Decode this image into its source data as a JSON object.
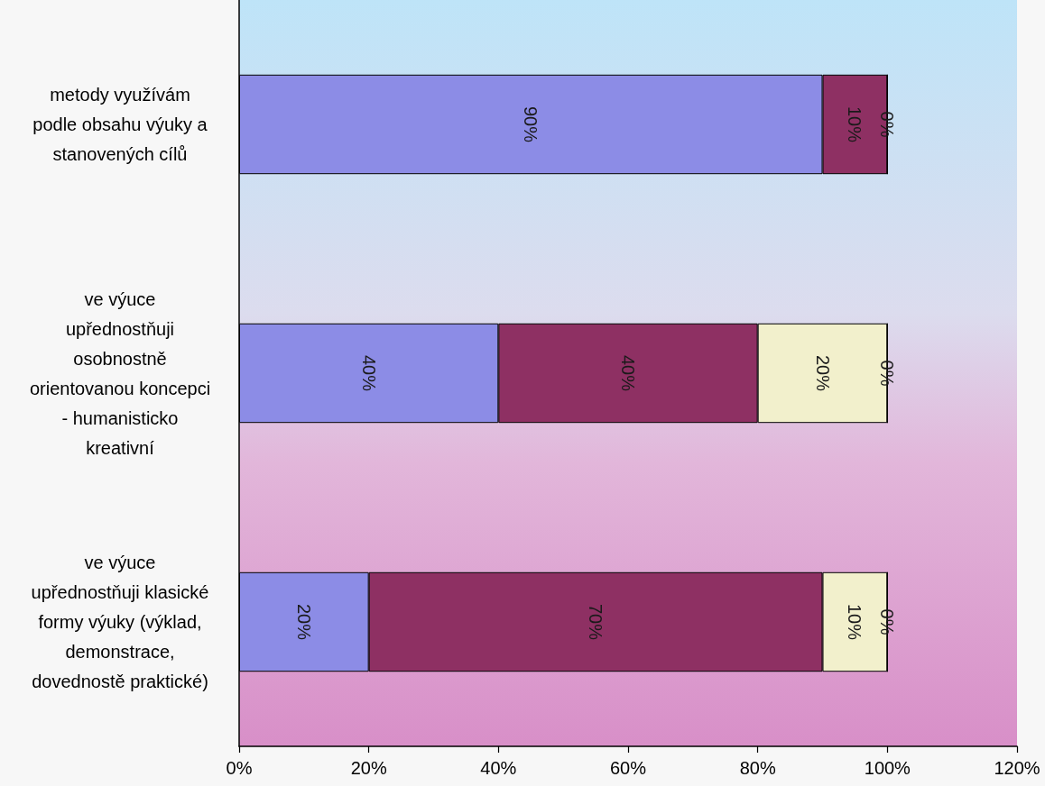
{
  "chart_data": {
    "type": "bar",
    "orientation": "horizontal",
    "stacked": true,
    "categories": [
      "metody využívám\npodle obsahu výuky a\nstanovených cílů",
      "ve výuce\nupřednostňuji\nosobnostně\norientovanou koncepci\n- humanisticko\nkreativní",
      "ve výuce\nupřednostňuji klasické\nformy výuky (výklad,\ndemonstrace,\ndovednostě praktické)"
    ],
    "series": [
      {
        "color": "#8c8ce6",
        "values": [
          90,
          40,
          20
        ],
        "value_labels": [
          "90%",
          "40%",
          "20%"
        ]
      },
      {
        "color": "#8e3063",
        "values": [
          10,
          40,
          70
        ],
        "value_labels": [
          "10%",
          "40%",
          "70%"
        ]
      },
      {
        "color": "#f2f0cc",
        "values": [
          null,
          20,
          10
        ],
        "value_labels": [
          null,
          "20%",
          "10%"
        ]
      },
      {
        "values": [
          0,
          0,
          0
        ],
        "value_labels": [
          "0%",
          "0%",
          "0%"
        ]
      }
    ],
    "xlim": [
      0,
      120
    ],
    "xticks": [
      {
        "value": 0,
        "label": "0%"
      },
      {
        "value": 20,
        "label": "20%"
      },
      {
        "value": 40,
        "label": "40%"
      },
      {
        "value": 60,
        "label": "60%"
      },
      {
        "value": 80,
        "label": "80%"
      },
      {
        "value": 100,
        "label": "100%"
      },
      {
        "value": 120,
        "label": "120%"
      }
    ]
  }
}
